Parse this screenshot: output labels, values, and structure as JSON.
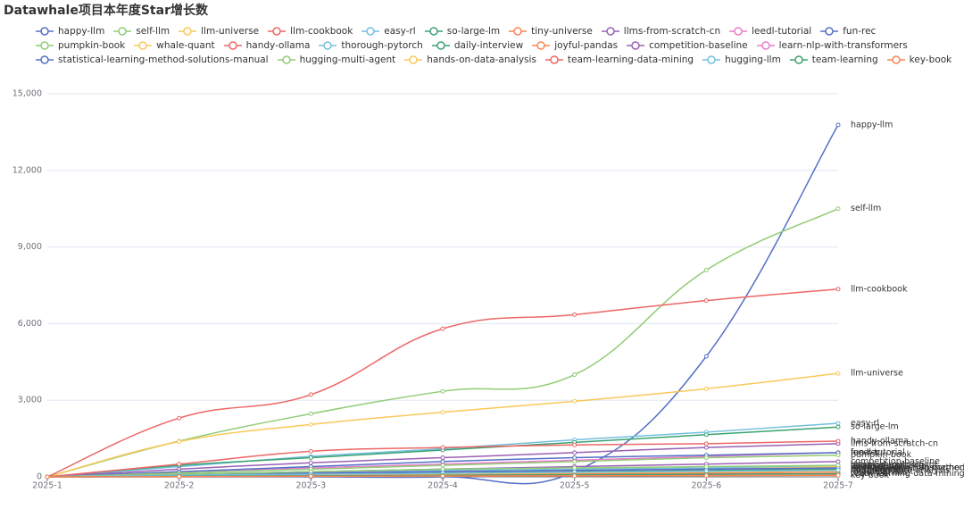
{
  "chart_data": {
    "type": "line",
    "title": "Datawhale项目本年度Star增长数",
    "categories": [
      "2025-1",
      "2025-2",
      "2025-3",
      "2025-4",
      "2025-5",
      "2025-6",
      "2025-7"
    ],
    "ylim": [
      0,
      15000
    ],
    "yticks": [
      0,
      {
        "value": 3000,
        "label": "3,000"
      },
      {
        "value": 6000,
        "label": "6,000"
      },
      {
        "value": 9000,
        "label": "9,000"
      },
      {
        "value": 12000,
        "label": "12,000"
      },
      {
        "value": 15000,
        "label": "15,000"
      }
    ],
    "grid": true,
    "smooth": true,
    "end_labels": true,
    "series": [
      {
        "name": "happy-llm",
        "color": "#5470c6",
        "values": [
          0,
          0,
          0,
          0,
          200,
          4720,
          13780
        ]
      },
      {
        "name": "self-llm",
        "color": "#91cc75",
        "values": [
          0,
          1400,
          2470,
          3350,
          4000,
          8100,
          10500
        ]
      },
      {
        "name": "llm-universe",
        "color": "#fac858",
        "values": [
          0,
          1380,
          2050,
          2530,
          2960,
          3450,
          4050
        ]
      },
      {
        "name": "llm-cookbook",
        "color": "#ee6666",
        "values": [
          0,
          2300,
          3220,
          5800,
          6350,
          6900,
          7350
        ]
      },
      {
        "name": "easy-rl",
        "color": "#73c0de",
        "values": [
          0,
          400,
          800,
          1100,
          1450,
          1750,
          2100
        ]
      },
      {
        "name": "so-large-lm",
        "color": "#3ba272",
        "values": [
          0,
          450,
          750,
          1050,
          1350,
          1650,
          1950
        ]
      },
      {
        "name": "tiny-universe",
        "color": "#fc8452",
        "values": [
          0,
          50,
          100,
          150,
          200,
          250,
          300
        ]
      },
      {
        "name": "llms-from-scratch-cn",
        "color": "#9a60b4",
        "values": [
          0,
          300,
          550,
          750,
          950,
          1150,
          1300
        ]
      },
      {
        "name": "leedl-tutorial",
        "color": "#ea7ccc",
        "values": [
          0,
          200,
          350,
          500,
          650,
          800,
          950
        ]
      },
      {
        "name": "fun-rec",
        "color": "#5470c6",
        "values": [
          0,
          200,
          400,
          600,
          750,
          850,
          950
        ]
      },
      {
        "name": "pumpkin-book",
        "color": "#91cc75",
        "values": [
          0,
          150,
          300,
          450,
          600,
          750,
          850
        ]
      },
      {
        "name": "whale-quant",
        "color": "#fac858",
        "values": [
          0,
          50,
          100,
          200,
          250,
          300,
          400
        ]
      },
      {
        "name": "handy-ollama",
        "color": "#ee6666",
        "values": [
          0,
          500,
          1000,
          1150,
          1250,
          1300,
          1400
        ]
      },
      {
        "name": "thorough-pytorch",
        "color": "#73c0de",
        "values": [
          0,
          100,
          200,
          250,
          300,
          350,
          450
        ]
      },
      {
        "name": "daily-interview",
        "color": "#3ba272",
        "values": [
          0,
          50,
          100,
          150,
          200,
          250,
          300
        ]
      },
      {
        "name": "joyful-pandas",
        "color": "#fc8452",
        "values": [
          0,
          30,
          60,
          90,
          120,
          150,
          180
        ]
      },
      {
        "name": "competition-baseline",
        "color": "#9a60b4",
        "values": [
          0,
          100,
          200,
          300,
          400,
          500,
          600
        ]
      },
      {
        "name": "learn-nlp-with-transformers",
        "color": "#ea7ccc",
        "values": [
          0,
          100,
          150,
          200,
          250,
          300,
          350
        ]
      },
      {
        "name": "statistical-learning-method-solutions-manual",
        "color": "#5470c6",
        "values": [
          0,
          80,
          150,
          200,
          250,
          300,
          350
        ]
      },
      {
        "name": "hugging-multi-agent",
        "color": "#91cc75",
        "values": [
          0,
          100,
          200,
          300,
          350,
          400,
          450
        ]
      },
      {
        "name": "hands-on-data-analysis",
        "color": "#fac858",
        "values": [
          0,
          40,
          80,
          120,
          160,
          200,
          240
        ]
      },
      {
        "name": "team-learning-data-mining",
        "color": "#ee6666",
        "values": [
          0,
          20,
          40,
          60,
          80,
          100,
          120
        ]
      },
      {
        "name": "hugging-llm",
        "color": "#73c0de",
        "values": [
          0,
          60,
          100,
          140,
          180,
          220,
          260
        ]
      },
      {
        "name": "team-learning",
        "color": "#3ba272",
        "values": [
          0,
          20,
          40,
          60,
          80,
          100,
          120
        ]
      },
      {
        "name": "key-book",
        "color": "#fc8452",
        "values": [
          0,
          10,
          20,
          30,
          40,
          50,
          60
        ]
      }
    ]
  }
}
